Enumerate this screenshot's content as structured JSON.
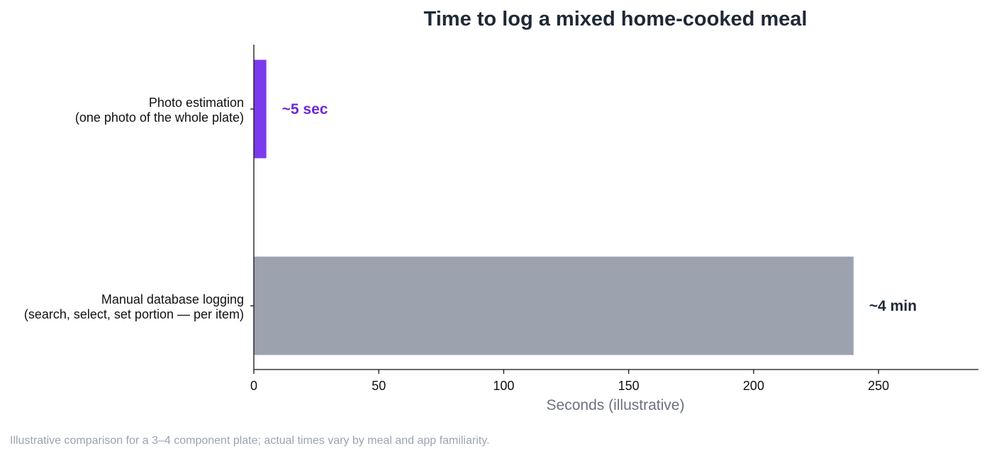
{
  "chart_data": {
    "type": "bar",
    "orientation": "horizontal",
    "title": "Time to log a mixed home-cooked meal",
    "xlabel": "Seconds (illustrative)",
    "ylabel": "",
    "xlim": [
      0,
      290
    ],
    "xticks": [
      0,
      50,
      100,
      150,
      200,
      250
    ],
    "grid": false,
    "legend": "none",
    "categories": [
      [
        "Photo estimation",
        "(one photo of the whole plate)"
      ],
      [
        "Manual database logging",
        "(search, select, set portion — per item)"
      ]
    ],
    "values": [
      5,
      240
    ],
    "data_labels": [
      "~5 sec",
      "~4 min"
    ],
    "colors": [
      "#7c3aed",
      "#9ca3af"
    ],
    "label_colors": [
      "#6d28d9",
      "#1f2937"
    ]
  },
  "footnote": "Illustrative comparison for a 3–4 component plate; actual times vary by meal and app familiarity."
}
